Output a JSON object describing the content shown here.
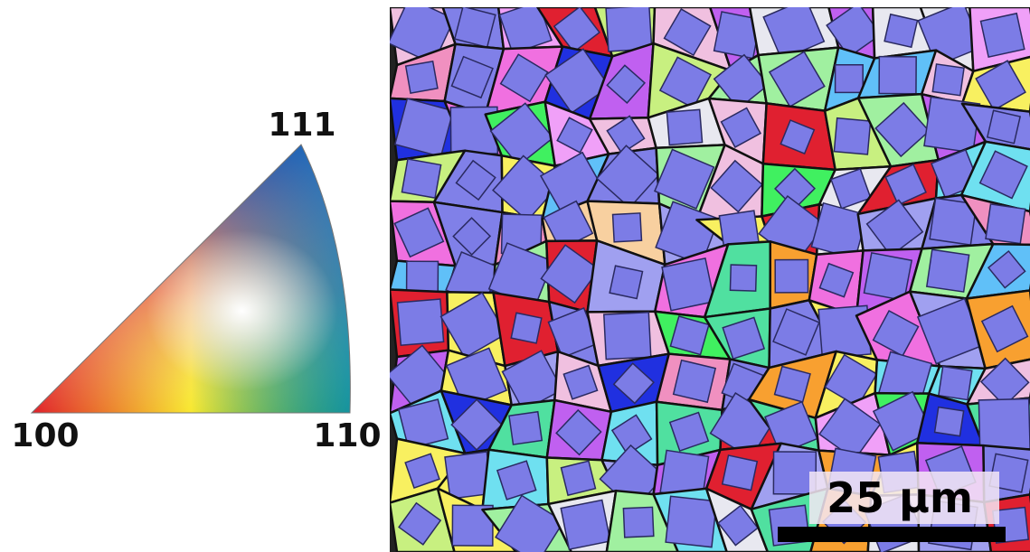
{
  "ipf_key": {
    "corner_111": "111",
    "corner_100": "100",
    "corner_110": "110"
  },
  "scale_bar": {
    "label": "25 µm"
  }
}
